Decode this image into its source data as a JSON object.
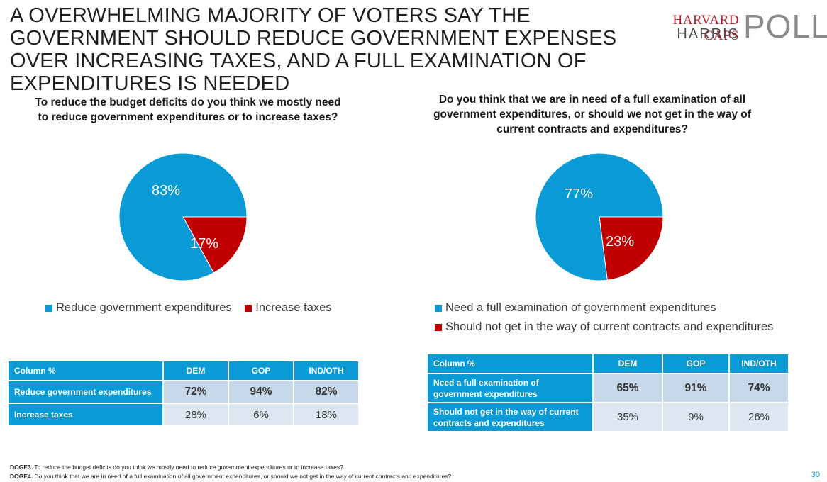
{
  "title": "A OVERWHELMING MAJORITY OF VOTERS SAY THE GOVERNMENT SHOULD REDUCE GOVERNMENT EXPENSES OVER INCREASING TAXES, AND A FULL EXAMINATION OF EXPENDITURES IS NEEDED",
  "logo": {
    "line1": "HARVARD CAPS",
    "line2": "HARRIS",
    "line3": "POLL"
  },
  "colors": {
    "blue": "#0a9ad6",
    "red": "#c00000"
  },
  "chart_data": [
    {
      "type": "pie",
      "title": "To reduce the budget deficits do you think we mostly need to reduce government expenditures or to increase taxes?",
      "categories": [
        "Reduce government expenditures",
        "Increase taxes"
      ],
      "values": [
        83,
        17
      ],
      "labels": [
        "83%",
        "17%"
      ],
      "colors": [
        "#0a9ad6",
        "#c00000"
      ],
      "legend": "bottom"
    },
    {
      "type": "pie",
      "title": "Do you think that we are in need of a full examination of all government expenditures, or should we not get in the way of current contracts and expenditures?",
      "categories": [
        "Need a full examination of government expenditures",
        "Should not get in the way of current contracts and expenditures"
      ],
      "values": [
        77,
        23
      ],
      "labels": [
        "77%",
        "23%"
      ],
      "colors": [
        "#0a9ad6",
        "#c00000"
      ],
      "legend": "bottom"
    },
    {
      "type": "table",
      "columns": [
        "Column %",
        "DEM",
        "GOP",
        "IND/OTH"
      ],
      "rows": [
        {
          "label": "Reduce government expenditures",
          "values": [
            "72%",
            "94%",
            "82%"
          ],
          "bold": true
        },
        {
          "label": "Increase taxes",
          "values": [
            "28%",
            "6%",
            "18%"
          ],
          "bold": false
        }
      ]
    },
    {
      "type": "table",
      "columns": [
        "Column %",
        "DEM",
        "GOP",
        "IND/OTH"
      ],
      "rows": [
        {
          "label": "Need a full examination of government expenditures",
          "values": [
            "65%",
            "91%",
            "74%"
          ],
          "bold": true
        },
        {
          "label": "Should not get in the way of current contracts and expenditures",
          "values": [
            "35%",
            "9%",
            "26%"
          ],
          "bold": false
        }
      ]
    }
  ],
  "footnotes": [
    {
      "code": "DOGE3.",
      "text": " To reduce the budget deficits do you think we mostly need to reduce government expenditures or to increase taxes?"
    },
    {
      "code": "DOGE4.",
      "text": " Do you think that we are in need of a full examination of all government expenditures, or should we not get in the way of current contracts and expenditures?"
    }
  ],
  "page_number": "30"
}
